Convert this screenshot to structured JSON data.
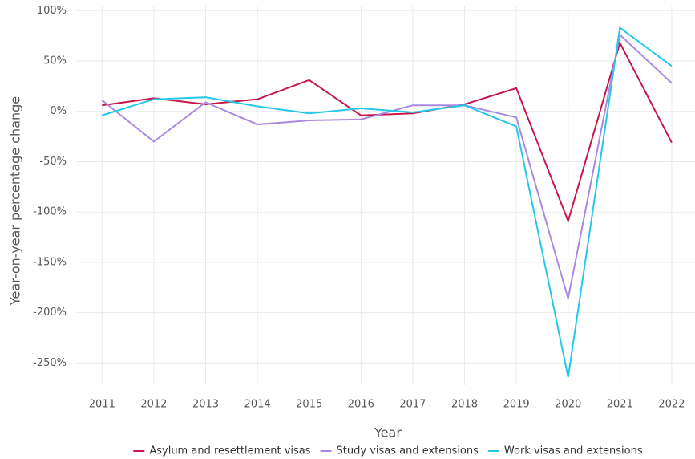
{
  "chart_data": {
    "type": "line",
    "x_label": "Year",
    "y_label": "Year-on-year percentage change",
    "x": [
      2011,
      2012,
      2013,
      2014,
      2015,
      2016,
      2017,
      2018,
      2019,
      2020,
      2021,
      2022
    ],
    "xlim": [
      2010.5,
      2022.45
    ],
    "ylim": [
      -272,
      105
    ],
    "yticks": [
      {
        "value": -250,
        "label": "-250%"
      },
      {
        "value": -200,
        "label": "-200%"
      },
      {
        "value": -150,
        "label": "-150%"
      },
      {
        "value": -100,
        "label": "-100%"
      },
      {
        "value": -50,
        "label": "-50%"
      },
      {
        "value": 0,
        "label": "0%"
      },
      {
        "value": 50,
        "label": "50%"
      },
      {
        "value": 100,
        "label": "100%"
      }
    ],
    "grid": true,
    "legend": "bottom",
    "series": [
      {
        "name": "Asylum and resettlement visas",
        "color": "#c8174a",
        "values": [
          6,
          13,
          7,
          12,
          31,
          -4,
          -2,
          7,
          23,
          -109,
          68,
          -31
        ]
      },
      {
        "name": "Study visas and extensions",
        "color": "#a98ae0",
        "values": [
          11,
          -30,
          9,
          -13,
          -9,
          -8,
          6,
          6,
          -6,
          -186,
          76,
          28
        ]
      },
      {
        "name": "Work visas and extensions",
        "color": "#25c8e8",
        "values": [
          -4,
          12,
          14,
          5,
          -2,
          3,
          -1,
          6,
          -15,
          -264,
          83,
          45
        ]
      }
    ]
  }
}
